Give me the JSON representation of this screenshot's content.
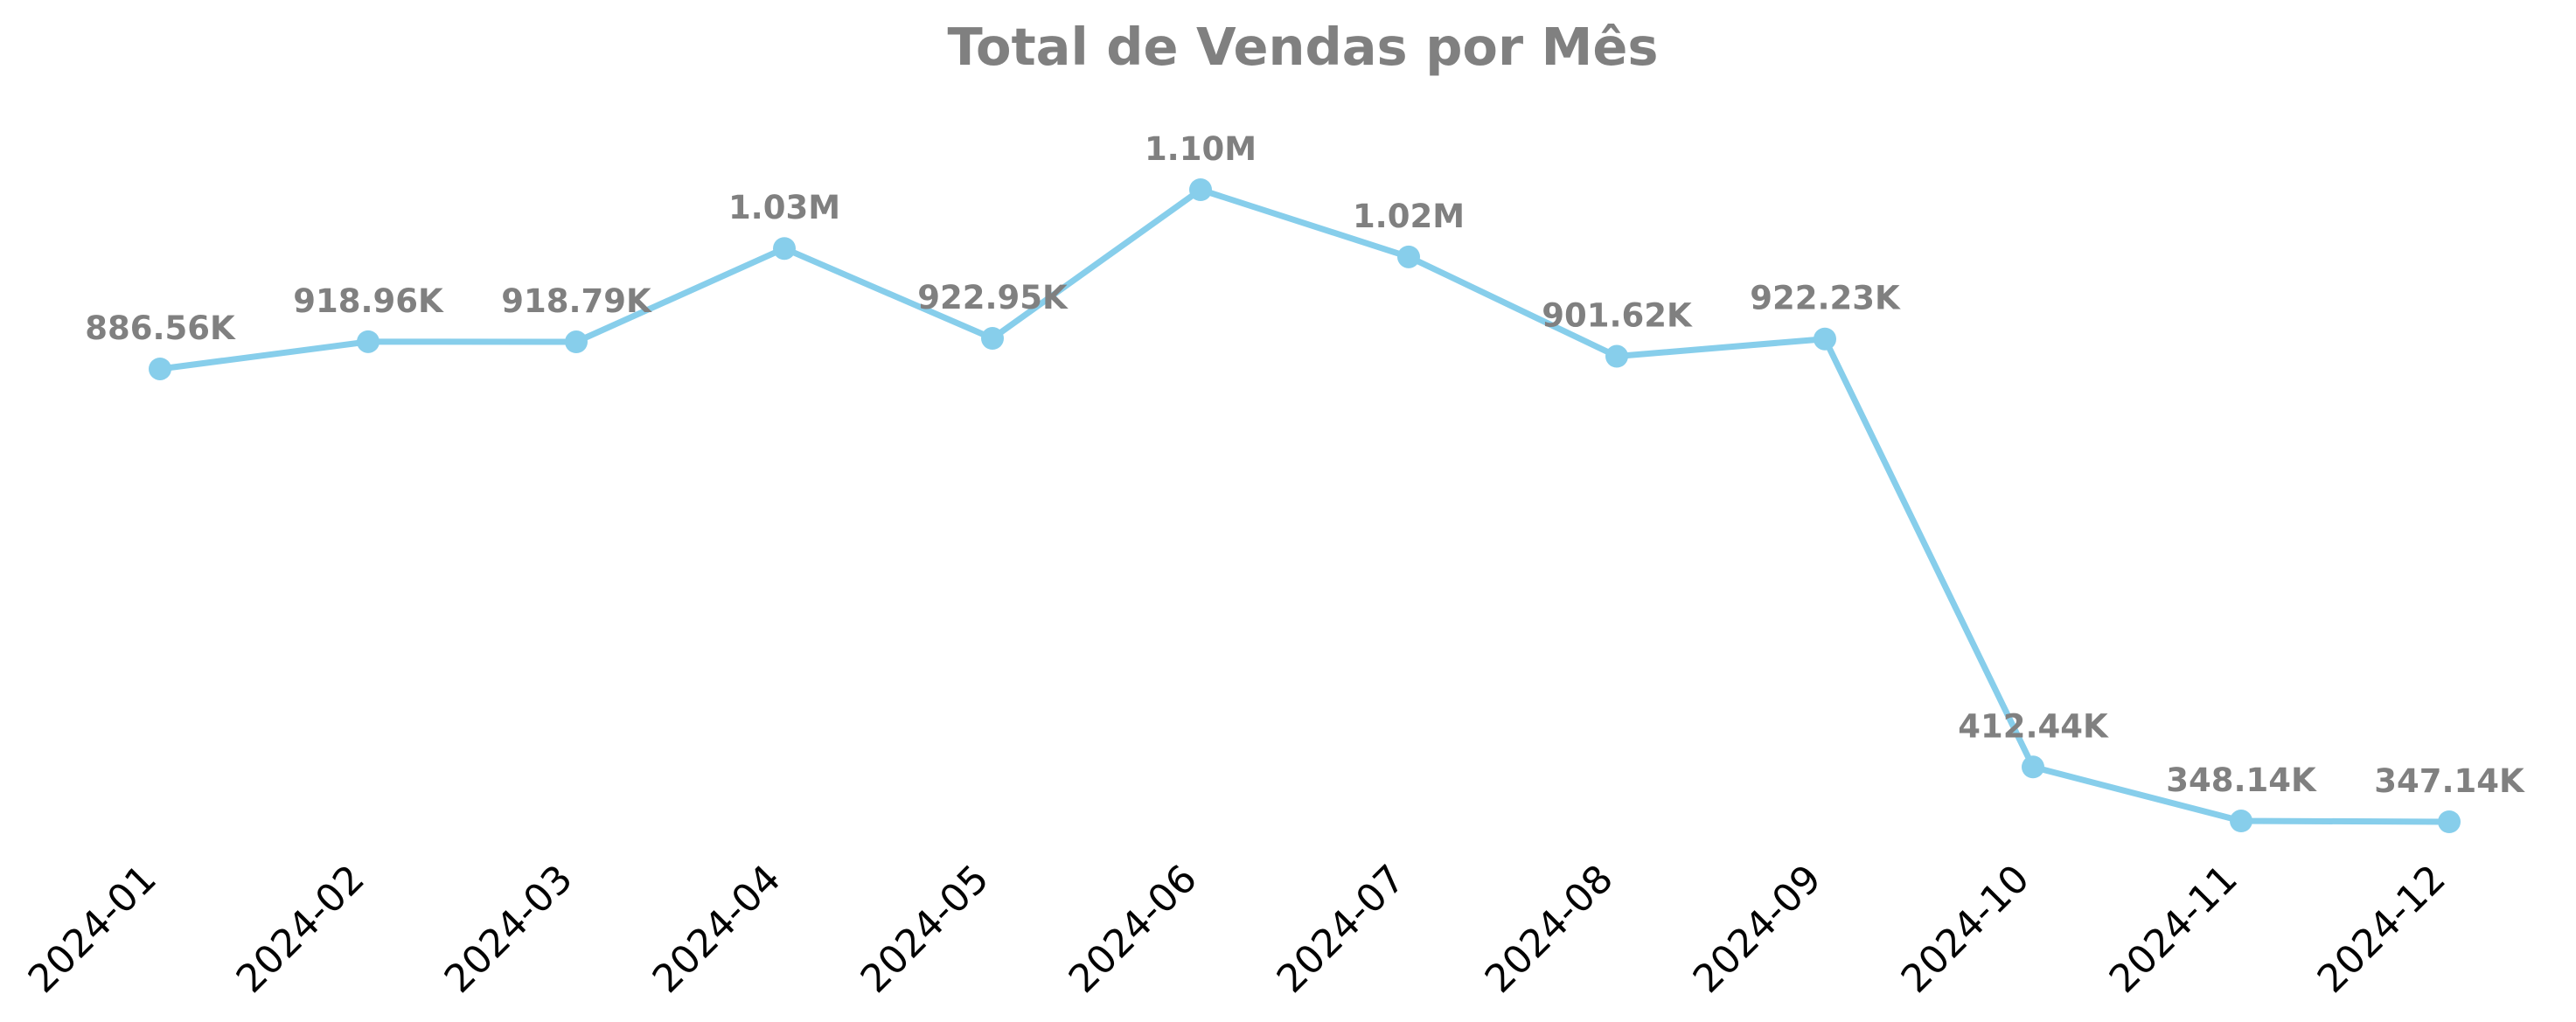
{
  "chart_data": {
    "type": "line",
    "title": "Total de Vendas por Mês",
    "xlabel": "",
    "ylabel": "",
    "categories": [
      "2024-01",
      "2024-02",
      "2024-03",
      "2024-04",
      "2024-05",
      "2024-06",
      "2024-07",
      "2024-08",
      "2024-09",
      "2024-10",
      "2024-11",
      "2024-12"
    ],
    "values": [
      886560,
      918960,
      918790,
      1030000,
      922950,
      1100000,
      1020000,
      901620,
      922230,
      412440,
      348140,
      347140
    ],
    "data_labels": [
      "886.56K",
      "918.96K",
      "918.79K",
      "1.03M",
      "922.95K",
      "1.10M",
      "1.02M",
      "901.62K",
      "922.23K",
      "412.44K",
      "348.14K",
      "347.14K"
    ],
    "ylim": [
      300000,
      1150000
    ],
    "grid": false,
    "legend": "none",
    "colors": {
      "line": "#87CEEB",
      "title": "#808080",
      "data_label": "#808080",
      "tick_label": "#000000"
    }
  }
}
